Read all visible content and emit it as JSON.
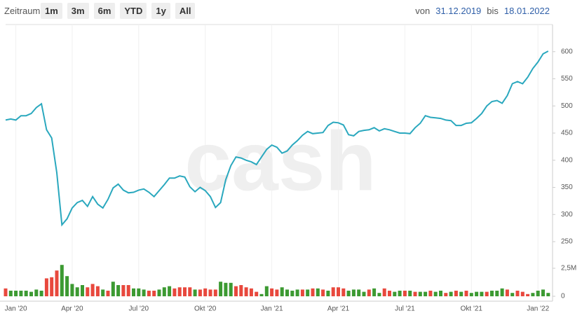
{
  "toolbar": {
    "label": "Zeitraum",
    "buttons": [
      "1m",
      "3m",
      "6m",
      "YTD",
      "1y",
      "All"
    ],
    "from_label": "von",
    "from": "31.12.2019",
    "to_label": "bis",
    "to": "18.01.2022"
  },
  "watermark": "cash",
  "chart_data": [
    {
      "type": "line",
      "color": "#2aa8be",
      "grid": true,
      "categories": [
        null,
        null,
        "Jan '20",
        null,
        null,
        null,
        null,
        null,
        null,
        null,
        null,
        null,
        null,
        "Apr '20",
        null,
        null,
        null,
        null,
        null,
        null,
        null,
        null,
        null,
        null,
        null,
        null,
        "Jul '20",
        null,
        null,
        null,
        null,
        null,
        null,
        null,
        null,
        null,
        null,
        null,
        null,
        "Okt '20",
        null,
        null,
        null,
        null,
        null,
        null,
        null,
        null,
        null,
        null,
        null,
        null,
        "Jan '21",
        null,
        null,
        null,
        null,
        null,
        null,
        null,
        null,
        null,
        null,
        null,
        null,
        "Apr '21",
        null,
        null,
        null,
        null,
        null,
        null,
        null,
        null,
        null,
        null,
        null,
        null,
        "Jul '21",
        null,
        null,
        null,
        null,
        null,
        null,
        null,
        null,
        null,
        null,
        null,
        null,
        "Okt '21",
        null,
        null,
        null,
        null,
        null,
        null,
        null,
        null,
        null,
        null,
        null,
        null,
        "Jan '22",
        null,
        null
      ],
      "values": [
        474,
        476,
        474,
        482,
        482,
        486,
        497,
        504,
        456,
        441,
        377,
        281,
        292,
        312,
        322,
        326,
        315,
        333,
        319,
        312,
        328,
        349,
        356,
        345,
        340,
        341,
        345,
        347,
        341,
        333,
        344,
        355,
        367,
        367,
        371,
        369,
        351,
        342,
        350,
        344,
        333,
        313,
        322,
        364,
        390,
        406,
        404,
        400,
        397,
        392,
        406,
        420,
        428,
        424,
        413,
        417,
        428,
        436,
        446,
        453,
        449,
        450,
        451,
        464,
        470,
        469,
        465,
        447,
        445,
        453,
        455,
        456,
        460,
        454,
        458,
        456,
        453,
        450,
        450,
        449,
        460,
        468,
        482,
        479,
        478,
        477,
        474,
        473,
        464,
        464,
        468,
        469,
        477,
        486,
        500,
        508,
        510,
        505,
        519,
        541,
        545,
        541,
        553,
        569,
        581,
        596,
        601
      ],
      "ylim": [
        250,
        650
      ],
      "yticks": [
        250,
        300,
        350,
        400,
        450,
        500,
        550,
        600
      ]
    },
    {
      "type": "bar",
      "values": [
        700000,
        500000,
        500000,
        500000,
        500000,
        400000,
        600000,
        500000,
        1600000,
        1700000,
        2300000,
        2800000,
        1800000,
        1100000,
        800000,
        1000000,
        800000,
        1100000,
        900000,
        600000,
        500000,
        1300000,
        1000000,
        1000000,
        1000000,
        700000,
        700000,
        600000,
        500000,
        500000,
        600000,
        800000,
        900000,
        700000,
        800000,
        800000,
        800000,
        600000,
        600000,
        700000,
        600000,
        600000,
        1300000,
        1200000,
        1200000,
        900000,
        1000000,
        800000,
        700000,
        400000,
        200000,
        900000,
        700000,
        600000,
        800000,
        600000,
        500000,
        600000,
        600000,
        600000,
        700000,
        700000,
        600000,
        500000,
        800000,
        800000,
        700000,
        500000,
        600000,
        600000,
        400000,
        600000,
        700000,
        300000,
        700000,
        500000,
        400000,
        500000,
        500000,
        500000,
        400000,
        400000,
        400000,
        500000,
        400000,
        500000,
        300000,
        400000,
        500000,
        400000,
        500000,
        300000,
        400000,
        400000,
        400000,
        500000,
        500000,
        700000,
        600000,
        300000,
        500000,
        400000,
        200000,
        300000,
        500000,
        600000,
        300000
      ],
      "colors": [
        "#e8483d",
        "#3c9a32",
        "#3c9a32",
        "#3c9a32",
        "#3c9a32",
        "#3c9a32",
        "#3c9a32",
        "#3c9a32",
        "#e8483d",
        "#e8483d",
        "#e8483d",
        "#3c9a32",
        "#3c9a32",
        "#3c9a32",
        "#3c9a32",
        "#3c9a32",
        "#e8483d",
        "#e8483d",
        "#e8483d",
        "#3c9a32",
        "#e8483d",
        "#3c9a32",
        "#3c9a32",
        "#e8483d",
        "#e8483d",
        "#3c9a32",
        "#3c9a32",
        "#3c9a32",
        "#e8483d",
        "#e8483d",
        "#3c9a32",
        "#3c9a32",
        "#3c9a32",
        "#e8483d",
        "#e8483d",
        "#e8483d",
        "#e8483d",
        "#3c9a32",
        "#e8483d",
        "#e8483d",
        "#e8483d",
        "#e8483d",
        "#3c9a32",
        "#3c9a32",
        "#3c9a32",
        "#e8483d",
        "#e8483d",
        "#e8483d",
        "#e8483d",
        "#e8483d",
        "#3c9a32",
        "#3c9a32",
        "#e8483d",
        "#e8483d",
        "#3c9a32",
        "#3c9a32",
        "#3c9a32",
        "#3c9a32",
        "#e8483d",
        "#3c9a32",
        "#e8483d",
        "#3c9a32",
        "#e8483d",
        "#3c9a32",
        "#e8483d",
        "#e8483d",
        "#e8483d",
        "#3c9a32",
        "#3c9a32",
        "#3c9a32",
        "#3c9a32",
        "#e8483d",
        "#3c9a32",
        "#3c9a32",
        "#e8483d",
        "#e8483d",
        "#3c9a32",
        "#3c9a32",
        "#e8483d",
        "#3c9a32",
        "#e8483d",
        "#3c9a32",
        "#3c9a32",
        "#e8483d",
        "#3c9a32",
        "#3c9a32",
        "#e8483d",
        "#3c9a32",
        "#e8483d",
        "#3c9a32",
        "#e8483d",
        "#3c9a32",
        "#3c9a32",
        "#3c9a32",
        "#e8483d",
        "#3c9a32",
        "#3c9a32",
        "#3c9a32",
        "#e8483d",
        "#3c9a32",
        "#e8483d",
        "#e8483d",
        "#e8483d",
        "#3c9a32",
        "#3c9a32",
        "#3c9a32",
        "#3c9a32"
      ],
      "ylim": [
        0,
        3000000
      ],
      "yticks": [
        0,
        {
          "value": 2500000,
          "label": "2,5M"
        }
      ]
    }
  ]
}
